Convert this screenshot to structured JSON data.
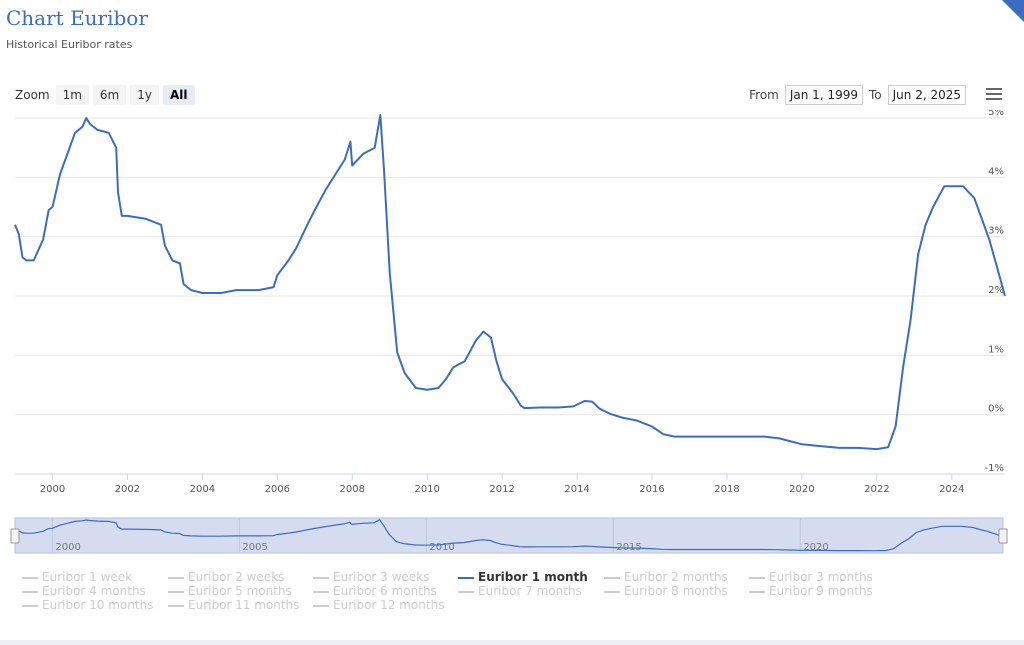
{
  "header": {
    "title": "Chart Euribor",
    "subtitle": "Historical Euribor rates"
  },
  "zoom": {
    "label": "Zoom",
    "buttons": [
      "1m",
      "6m",
      "1y",
      "All"
    ],
    "active": "All"
  },
  "range": {
    "from_label": "From",
    "from_value": "Jan 1, 1999",
    "to_label": "To",
    "to_value": "Jun 2, 2025"
  },
  "chart_data": {
    "type": "line",
    "title": "",
    "xlabel": "",
    "ylabel": "",
    "xlim": [
      1999.0,
      2025.42
    ],
    "ylim": [
      -1,
      5
    ],
    "x_ticks": [
      "2000",
      "2002",
      "2004",
      "2006",
      "2008",
      "2010",
      "2012",
      "2014",
      "2016",
      "2018",
      "2020",
      "2022",
      "2024"
    ],
    "y_ticks": [
      "-1%",
      "0%",
      "1%",
      "2%",
      "3%",
      "4%",
      "5%"
    ],
    "navigator_ticks": [
      "2000",
      "2005",
      "2010",
      "2015",
      "2020"
    ],
    "grid": true,
    "legend_position": "bottom",
    "series": [
      {
        "name": "Euribor 1 month",
        "color": "#3a6dbf",
        "x": [
          1999.0,
          1999.1,
          1999.2,
          1999.3,
          1999.5,
          1999.75,
          1999.9,
          2000.0,
          2000.2,
          2000.4,
          2000.6,
          2000.8,
          2000.9,
          2001.0,
          2001.2,
          2001.5,
          2001.7,
          2001.75,
          2001.85,
          2002.0,
          2002.5,
          2002.9,
          2003.0,
          2003.2,
          2003.4,
          2003.5,
          2003.7,
          2004.0,
          2004.5,
          2004.9,
          2005.0,
          2005.5,
          2005.9,
          2006.0,
          2006.3,
          2006.5,
          2006.8,
          2007.0,
          2007.3,
          2007.6,
          2007.8,
          2007.95,
          2008.0,
          2008.3,
          2008.6,
          2008.75,
          2008.85,
          2009.0,
          2009.2,
          2009.4,
          2009.7,
          2010.0,
          2010.3,
          2010.5,
          2010.7,
          2011.0,
          2011.3,
          2011.5,
          2011.7,
          2011.85,
          2012.0,
          2012.3,
          2012.5,
          2012.6,
          2013.0,
          2013.5,
          2013.9,
          2014.2,
          2014.4,
          2014.6,
          2014.9,
          2015.2,
          2015.6,
          2016.0,
          2016.3,
          2016.6,
          2017.0,
          2018.0,
          2019.0,
          2019.4,
          2019.7,
          2020.0,
          2020.5,
          2021.0,
          2021.5,
          2022.0,
          2022.3,
          2022.5,
          2022.7,
          2022.9,
          2023.1,
          2023.3,
          2023.5,
          2023.8,
          2024.0,
          2024.3,
          2024.6,
          2024.8,
          2025.0,
          2025.2,
          2025.42
        ],
        "y": [
          3.2,
          3.05,
          2.65,
          2.6,
          2.6,
          2.95,
          3.45,
          3.5,
          4.05,
          4.4,
          4.75,
          4.85,
          5.0,
          4.9,
          4.8,
          4.75,
          4.5,
          3.75,
          3.35,
          3.35,
          3.3,
          3.2,
          2.85,
          2.6,
          2.55,
          2.2,
          2.1,
          2.05,
          2.05,
          2.1,
          2.1,
          2.1,
          2.15,
          2.35,
          2.6,
          2.8,
          3.2,
          3.45,
          3.8,
          4.1,
          4.3,
          4.6,
          4.2,
          4.4,
          4.5,
          5.05,
          4.1,
          2.4,
          1.05,
          0.7,
          0.45,
          0.42,
          0.45,
          0.6,
          0.8,
          0.9,
          1.25,
          1.4,
          1.3,
          0.9,
          0.6,
          0.35,
          0.15,
          0.11,
          0.12,
          0.12,
          0.14,
          0.23,
          0.22,
          0.1,
          0.01,
          -0.05,
          -0.1,
          -0.2,
          -0.33,
          -0.37,
          -0.37,
          -0.37,
          -0.37,
          -0.4,
          -0.45,
          -0.5,
          -0.53,
          -0.56,
          -0.56,
          -0.58,
          -0.55,
          -0.2,
          0.8,
          1.6,
          2.7,
          3.2,
          3.5,
          3.85,
          3.85,
          3.85,
          3.65,
          3.3,
          2.95,
          2.5,
          2.0
        ]
      }
    ]
  },
  "legend": {
    "items": [
      "Euribor 1 week",
      "Euribor 2 weeks",
      "Euribor 3 weeks",
      "Euribor 1 month",
      "Euribor 2 months",
      "Euribor 3 months",
      "Euribor 4 months",
      "Euribor 5 months",
      "Euribor 6 months",
      "Euribor 7 months",
      "Euribor 8 months",
      "Euribor 9 months",
      "Euribor 10 months",
      "Euribor 11 months",
      "Euribor 12 months"
    ],
    "active": "Euribor 1 month"
  },
  "colors": {
    "accent": "#3a6dbf",
    "navigator_fill": "#d5dcef",
    "inactive": "#cccccc"
  }
}
